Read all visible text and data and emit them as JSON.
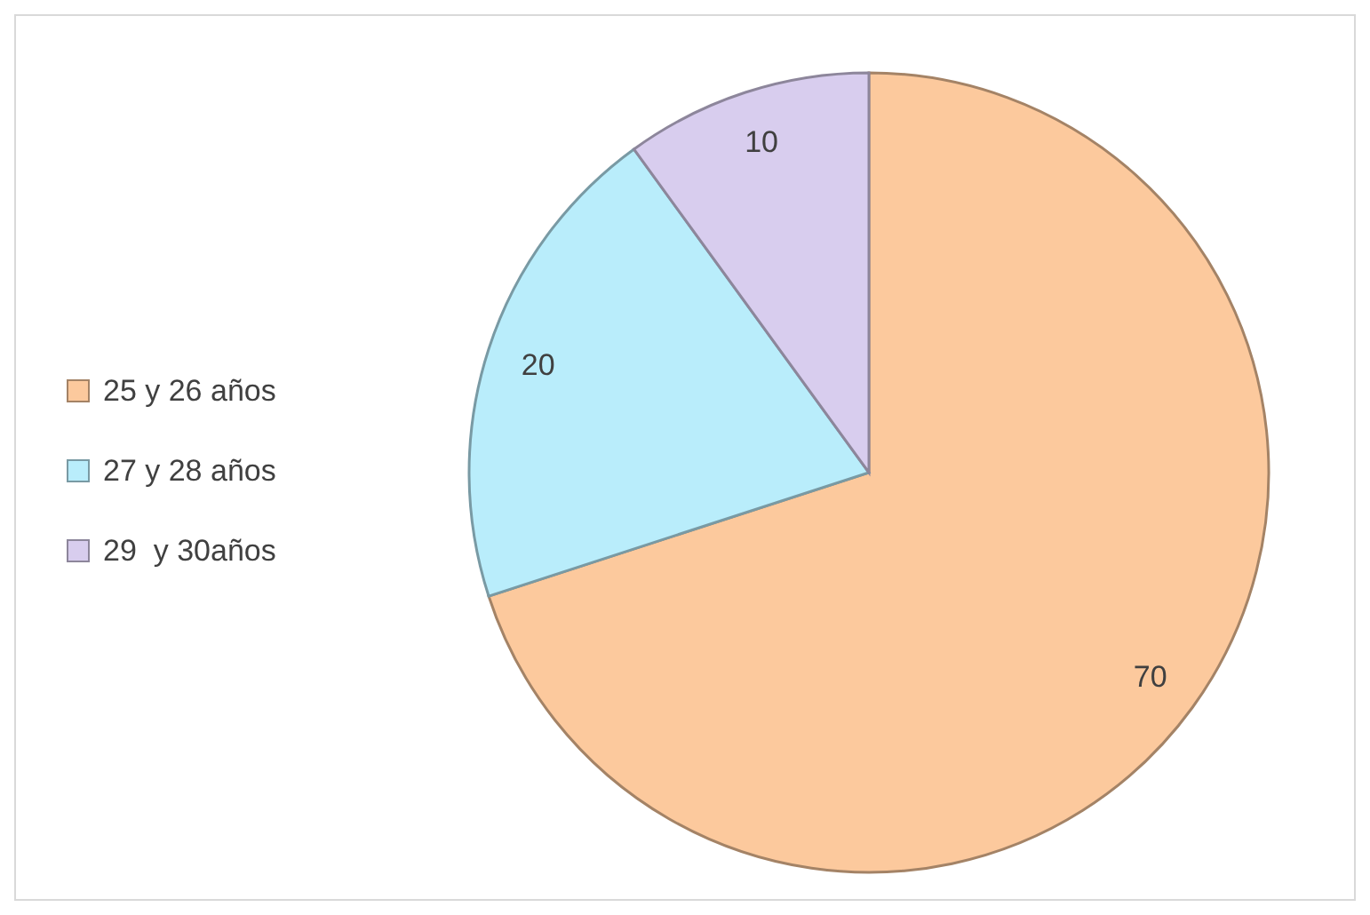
{
  "chart_data": {
    "type": "pie",
    "categories": [
      "25 y 26 años",
      "27 y 28 años",
      "29  y 30años"
    ],
    "values": [
      70,
      20,
      10
    ],
    "colors": [
      "#fcc99d",
      "#b9edfb",
      "#d8cdee"
    ],
    "data_labels": true,
    "legend": "left"
  }
}
